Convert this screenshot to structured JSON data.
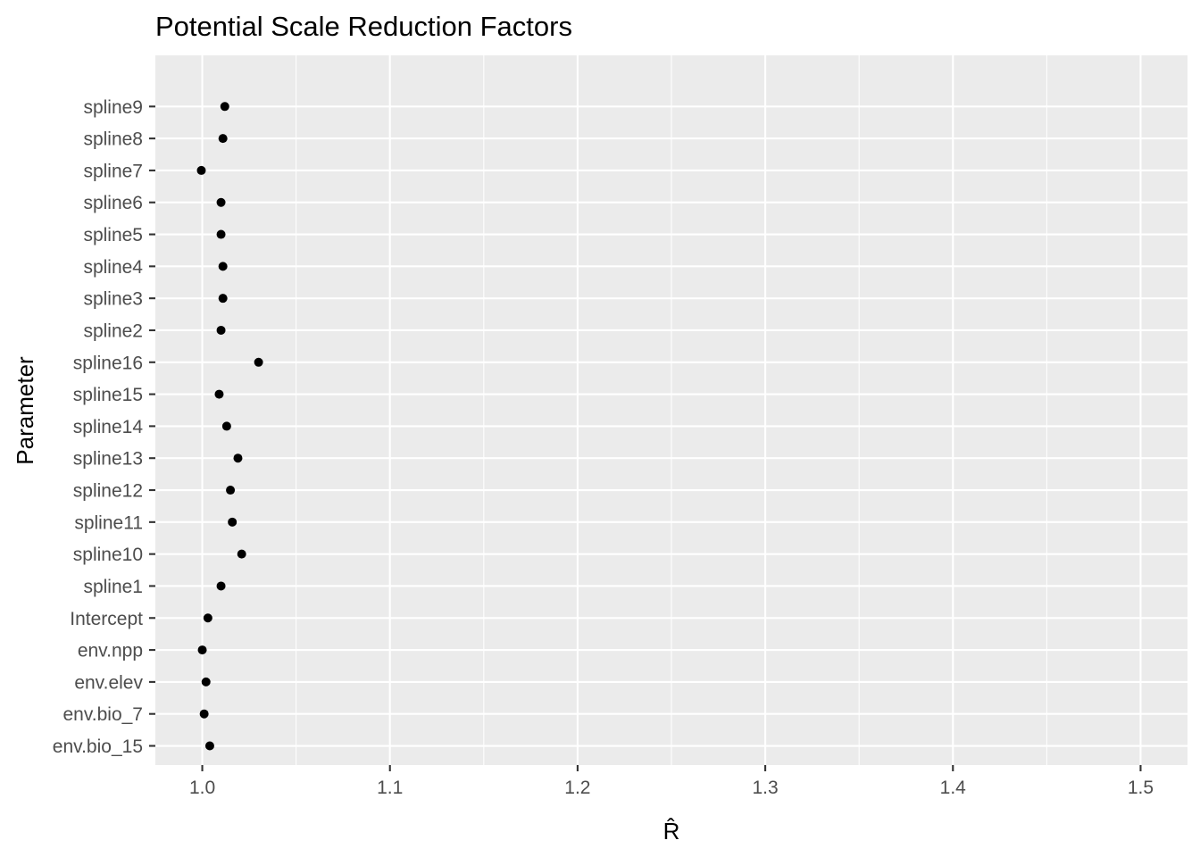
{
  "chart_data": {
    "type": "scatter",
    "title": "Potential Scale Reduction Factors",
    "xlabel": "R̂",
    "ylabel": "Parameter",
    "xlim": [
      0.975,
      1.525
    ],
    "x_ticks": [
      1.0,
      1.1,
      1.2,
      1.3,
      1.4,
      1.5
    ],
    "x_tick_labels": [
      "1.0",
      "1.1",
      "1.2",
      "1.3",
      "1.4",
      "1.5"
    ],
    "x_minor_ticks": [
      1.05,
      1.15,
      1.25,
      1.35,
      1.45
    ],
    "grid": true,
    "point_color": "#000000",
    "panel_color": "#EBEBEB",
    "categories": [
      "env.bio_15",
      "env.bio_7",
      "env.elev",
      "env.npp",
      "Intercept",
      "spline1",
      "spline10",
      "spline11",
      "spline12",
      "spline13",
      "spline14",
      "spline15",
      "spline16",
      "spline2",
      "spline3",
      "spline4",
      "spline5",
      "spline6",
      "spline7",
      "spline8",
      "spline9"
    ],
    "values": [
      1.004,
      1.001,
      1.002,
      1.0,
      1.003,
      1.01,
      1.021,
      1.016,
      1.015,
      1.019,
      1.013,
      1.009,
      1.03,
      1.01,
      1.011,
      1.011,
      1.01,
      1.01,
      0.9995,
      1.011,
      1.012
    ]
  }
}
